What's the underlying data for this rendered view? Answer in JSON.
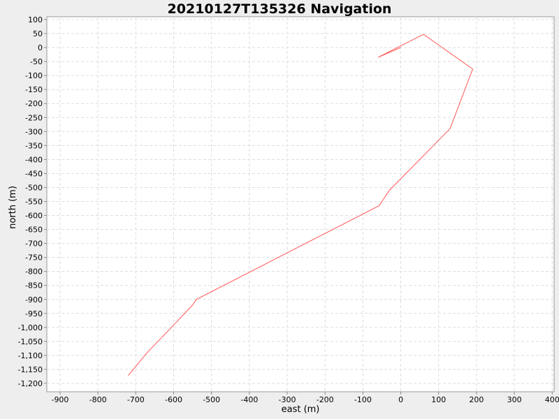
{
  "chart_data": {
    "type": "line",
    "title": "20210127T135326 Navigation",
    "xlabel": "east (m)",
    "ylabel": "north (m)",
    "xlim": [
      -935,
      405
    ],
    "ylim": [
      -1230,
      110
    ],
    "x_ticks": [
      -900,
      -800,
      -700,
      -600,
      -500,
      -400,
      -300,
      -200,
      -100,
      0,
      100,
      200,
      300,
      400
    ],
    "x_tick_labels": [
      "-900",
      "-800",
      "-700",
      "-600",
      "-500",
      "-400",
      "-300",
      "-200",
      "-100",
      "0",
      "100",
      "200",
      "300",
      "400"
    ],
    "y_ticks": [
      100,
      50,
      0,
      -50,
      -100,
      -150,
      -200,
      -250,
      -300,
      -350,
      -400,
      -450,
      -500,
      -550,
      -600,
      -650,
      -700,
      -750,
      -800,
      -850,
      -900,
      -950,
      -1000,
      -1050,
      -1100,
      -1150,
      -1200
    ],
    "y_tick_labels": [
      "100",
      "50",
      "0",
      "-50",
      "-100",
      "-150",
      "-200",
      "-250",
      "-300",
      "-350",
      "-400",
      "-450",
      "-500",
      "-550",
      "-600",
      "-650",
      "-700",
      "-750",
      "-800",
      "-850",
      "-900",
      "-950",
      "-1,000",
      "-1,050",
      "-1,100",
      "-1,150",
      "-1,200"
    ],
    "grid": true,
    "line_color": "#ff5555",
    "background": "#ffffff",
    "series": [
      {
        "x": [
          0,
          -60,
          60,
          190,
          130,
          -30,
          -57,
          -540,
          -550,
          -620,
          -670,
          -720
        ],
        "y": [
          0,
          -35,
          47,
          -77,
          -290,
          -510,
          -565,
          -900,
          -920,
          -1020,
          -1090,
          -1172
        ]
      }
    ]
  }
}
